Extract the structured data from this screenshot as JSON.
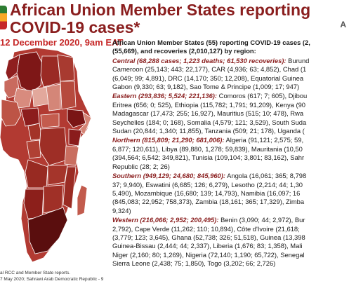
{
  "header": {
    "title_line1": "African Union Member States reporting",
    "title_line2": "COVID-19 cases*",
    "corner_text": "A",
    "date": "12 December 2020, 9am EAT"
  },
  "intro": {
    "line1": "African Union Member States (55) reporting COVID-19 cases (2,",
    "line2": "(55,669), and recoveries (2,010,127) by region:"
  },
  "regions": [
    {
      "head": "Central (68,288 cases; 1,223 deaths; 61,530 recoveries):",
      "head_tail": " Burund",
      "lines": [
        "Cameroon (25,143; 443; 22,177), CAR (4,936; 63; 4,852), Chad (1",
        "(6,049; 99; 4,891), DRC (14,170; 350; 12,208), Equatorial Guinea",
        "Gabon (9,330; 63; 9,182), Sao Tome & Principe (1,009; 17; 947)"
      ]
    },
    {
      "head": "Eastern (293,836; 5,524; 221,136):",
      "head_tail": " Comoros (617; 7; 605), Djibou",
      "lines": [
        "Eritrea (656; 0; 525), Ethiopia (115,782; 1,791; 91,209), Kenya (90",
        "Madagascar (17,473; 255; 16,927), Mauritius (515; 10; 478), Rwa",
        "Seychelles (184; 0; 168), Somalia (4,579; 121; 3,529), South Suda",
        "Sudan (20,844; 1,340; 11,855), Tanzania (509; 21; 178), Uganda ("
      ]
    },
    {
      "head": "Northern (815,809; 21,290; 681,006):",
      "head_tail": " Algeria (91,121; 2,575; 59,",
      "lines": [
        "6,877; 120,611), Libya (89,880, 1,278; 59,839), Mauritania (10,50",
        "(394,564; 6,542; 349,821), Tunisia (109,104; 3,801; 83,162), Sahr",
        "Republic (28; 2; 26)"
      ]
    },
    {
      "head": "Southern (949,129; 24,680; 845,960):",
      "head_tail": " Angola (16,061; 365; 8,798",
      "lines": [
        "37; 9,940), Eswatini (6,685; 126; 6,279), Lesotho (2,214; 44; 1,30",
        "5,490), Mozambique (16,680; 139; 14,793), Namibia (16,097; 16",
        "(845,083; 22,952; 758,373), Zambia (18,161; 365; 17,329), Zimba",
        "9,324)"
      ]
    },
    {
      "head": "Western (216,066; 2,952; 200,495):",
      "head_tail": " Benin (3,090; 44; 2,972), Bur",
      "lines": [
        "2,792), Cape Verde (11,262; 110; 10,894), Côte d'Ivoire (21,618;",
        "(3,779; 123; 3,645), Ghana (52,738; 326; 51,518), Guinea (13,398",
        "Guinea-Bissau (2,444; 44; 2,337), Liberia (1,676; 83; 1,358), Mali",
        "Niger (2,160; 80; 1,269), Nigeria (72,140; 1,190; 65,722), Senegal",
        "Sierra Leone (2,438; 75; 1,850), Togo (3,202; 66; 2,726)"
      ]
    }
  ],
  "footnote": {
    "line1": "al RCC and Member State reports.",
    "line2": "7 May 2020; Sahrawi Arab Democratic Republic - 9"
  },
  "colors": {
    "title": "#8a1e1e",
    "date": "#c62828",
    "region_head": "#8a1e1e",
    "map_dark": "#5c0f0f",
    "map_mid": "#a52a2a",
    "map_light": "#e8b4ae"
  }
}
